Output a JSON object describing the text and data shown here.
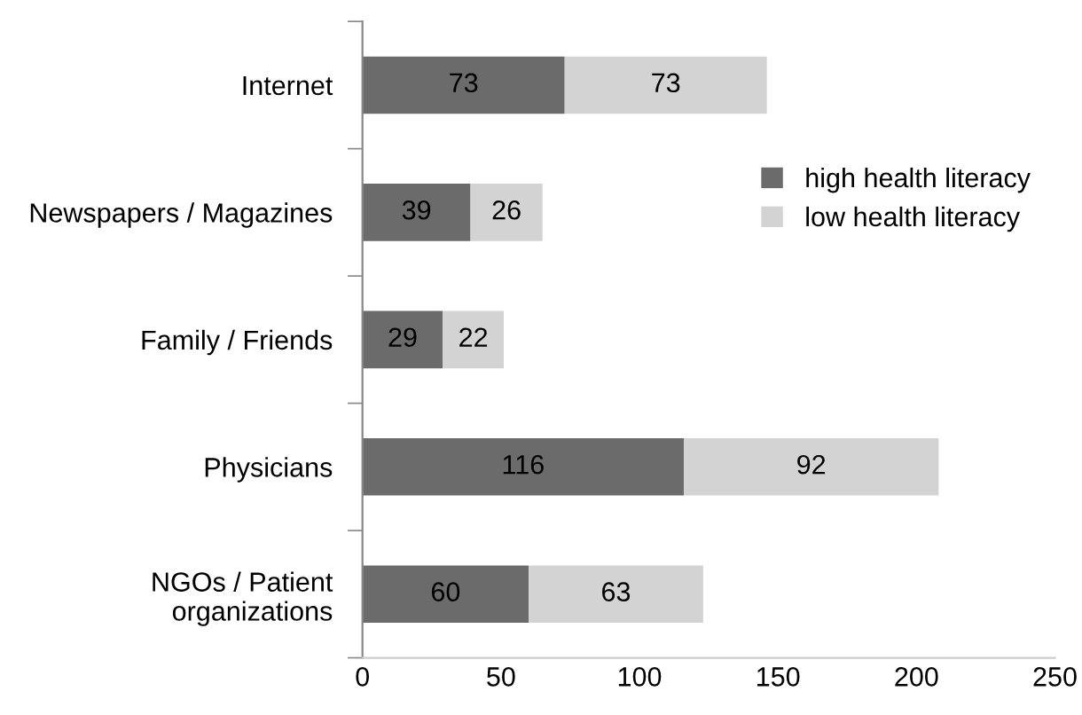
{
  "chart_data": {
    "type": "bar",
    "orientation": "horizontal",
    "stacked": true,
    "categories": [
      "Internet",
      "Newspapers / Magazines",
      "Family / Friends",
      "Physicians",
      "NGOs / Patient\norganizations"
    ],
    "series": [
      {
        "name": "high health literacy",
        "color": "#6b6b6b",
        "values": [
          73,
          39,
          29,
          116,
          60
        ]
      },
      {
        "name": "low health literacy",
        "color": "#d3d3d3",
        "values": [
          73,
          26,
          22,
          92,
          63
        ]
      }
    ],
    "xlim": [
      0,
      250
    ],
    "xticks": [
      0,
      50,
      100,
      150,
      200,
      250
    ],
    "grid": false,
    "legend": "right",
    "data_labels": true
  }
}
